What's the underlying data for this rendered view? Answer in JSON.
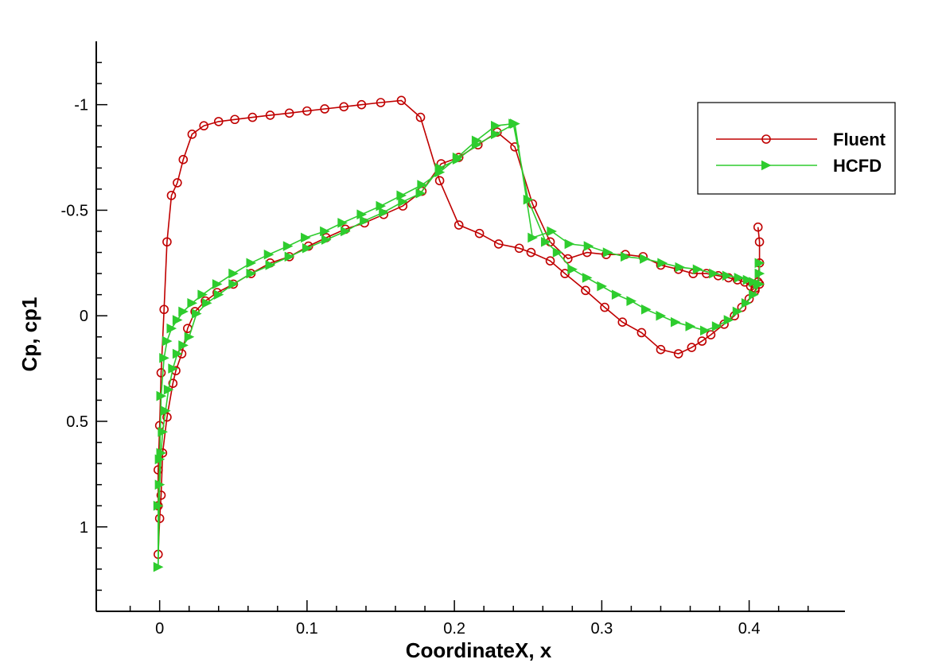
{
  "chart_data": {
    "type": "line",
    "xlabel": "CoordinateX, x",
    "ylabel": "Cp, cp1",
    "xlim": [
      -0.043,
      0.465
    ],
    "ylim": [
      1.4,
      -1.3
    ],
    "y_reversed": true,
    "x_ticks": [
      0,
      0.1,
      0.2,
      0.3,
      0.4
    ],
    "x_tick_labels": [
      "0",
      "0.1",
      "0.2",
      "0.3",
      "0.4"
    ],
    "y_ticks": [
      -1,
      -0.5,
      0,
      0.5,
      1
    ],
    "y_tick_labels": [
      "-1",
      "-0.5",
      "0",
      "0.5",
      "1"
    ],
    "legend_position": "top-right",
    "series": [
      {
        "name": "Fluent",
        "color": "#c00000",
        "marker": "circle",
        "x": [
          0.407,
          0.404,
          0.4,
          0.395,
          0.39,
          0.383,
          0.374,
          0.368,
          0.361,
          0.352,
          0.34,
          0.327,
          0.314,
          0.302,
          0.289,
          0.275,
          0.265,
          0.252,
          0.244,
          0.23,
          0.217,
          0.203,
          0.19,
          0.177,
          0.164,
          0.15,
          0.137,
          0.125,
          0.112,
          0.1,
          0.088,
          0.075,
          0.063,
          0.051,
          0.04,
          0.03,
          0.022,
          0.016,
          0.012,
          0.008,
          0.005,
          0.003,
          0.001,
          0.0,
          -0.001,
          -0.001,
          -0.001,
          0.0,
          0.001,
          0.002,
          0.005,
          0.009,
          0.011,
          0.015,
          0.019,
          0.024,
          0.031,
          0.039,
          0.05,
          0.062,
          0.075,
          0.088,
          0.101,
          0.113,
          0.126,
          0.139,
          0.152,
          0.165,
          0.178,
          0.191,
          0.203,
          0.216,
          0.229,
          0.241,
          0.253,
          0.265,
          0.277,
          0.29,
          0.303,
          0.316,
          0.328,
          0.34,
          0.352,
          0.362,
          0.371,
          0.379,
          0.386,
          0.392,
          0.397,
          0.401,
          0.404,
          0.406,
          0.407,
          0.407,
          0.406
        ],
        "y": [
          -0.15,
          -0.12,
          -0.08,
          -0.04,
          0.0,
          0.04,
          0.09,
          0.12,
          0.15,
          0.18,
          0.16,
          0.08,
          0.03,
          -0.04,
          -0.12,
          -0.2,
          -0.26,
          -0.3,
          -0.32,
          -0.34,
          -0.39,
          -0.43,
          -0.64,
          -0.94,
          -1.02,
          -1.01,
          -1.0,
          -0.99,
          -0.98,
          -0.97,
          -0.96,
          -0.95,
          -0.94,
          -0.93,
          -0.92,
          -0.9,
          -0.86,
          -0.74,
          -0.63,
          -0.57,
          -0.35,
          -0.03,
          0.27,
          0.52,
          0.73,
          0.9,
          1.13,
          0.96,
          0.85,
          0.65,
          0.48,
          0.32,
          0.26,
          0.18,
          0.06,
          -0.02,
          -0.07,
          -0.11,
          -0.15,
          -0.2,
          -0.25,
          -0.28,
          -0.33,
          -0.37,
          -0.41,
          -0.44,
          -0.48,
          -0.52,
          -0.59,
          -0.72,
          -0.75,
          -0.81,
          -0.87,
          -0.8,
          -0.53,
          -0.35,
          -0.27,
          -0.3,
          -0.29,
          -0.29,
          -0.28,
          -0.24,
          -0.22,
          -0.2,
          -0.2,
          -0.19,
          -0.18,
          -0.17,
          -0.16,
          -0.14,
          -0.13,
          -0.16,
          -0.25,
          -0.35,
          -0.42
        ]
      },
      {
        "name": "HCFD",
        "color": "#2ecc2e",
        "marker": "triangle-right",
        "x": [
          0.407,
          0.403,
          0.398,
          0.392,
          0.386,
          0.378,
          0.37,
          0.36,
          0.35,
          0.34,
          0.33,
          0.32,
          0.31,
          0.3,
          0.29,
          0.28,
          0.27,
          0.262,
          0.25,
          0.24,
          0.228,
          0.215,
          0.202,
          0.19,
          0.178,
          0.164,
          0.15,
          0.137,
          0.124,
          0.112,
          0.099,
          0.087,
          0.074,
          0.062,
          0.05,
          0.039,
          0.029,
          0.022,
          0.016,
          0.012,
          0.008,
          0.005,
          0.003,
          0.001,
          0.0,
          -0.001,
          -0.001,
          0.0,
          0.001,
          0.002,
          0.004,
          0.006,
          0.009,
          0.012,
          0.016,
          0.02,
          0.025,
          0.032,
          0.04,
          0.05,
          0.062,
          0.075,
          0.088,
          0.1,
          0.113,
          0.126,
          0.139,
          0.152,
          0.165,
          0.177,
          0.19,
          0.202,
          0.215,
          0.228,
          0.241,
          0.253,
          0.266,
          0.278,
          0.291,
          0.304,
          0.316,
          0.329,
          0.341,
          0.353,
          0.365,
          0.376,
          0.385,
          0.393,
          0.399,
          0.403,
          0.406,
          0.407,
          0.407
        ],
        "y": [
          -0.15,
          -0.1,
          -0.06,
          -0.02,
          0.02,
          0.05,
          0.07,
          0.05,
          0.03,
          0.0,
          -0.03,
          -0.07,
          -0.1,
          -0.14,
          -0.18,
          -0.22,
          -0.3,
          -0.35,
          -0.55,
          -0.91,
          -0.9,
          -0.83,
          -0.75,
          -0.68,
          -0.62,
          -0.57,
          -0.52,
          -0.48,
          -0.44,
          -0.4,
          -0.37,
          -0.33,
          -0.29,
          -0.25,
          -0.2,
          -0.15,
          -0.1,
          -0.06,
          -0.02,
          0.02,
          0.06,
          0.12,
          0.2,
          0.38,
          0.68,
          0.9,
          1.19,
          0.8,
          0.65,
          0.55,
          0.45,
          0.35,
          0.25,
          0.18,
          0.14,
          0.1,
          -0.01,
          -0.06,
          -0.1,
          -0.15,
          -0.2,
          -0.24,
          -0.28,
          -0.32,
          -0.36,
          -0.4,
          -0.45,
          -0.49,
          -0.54,
          -0.58,
          -0.7,
          -0.74,
          -0.81,
          -0.86,
          -0.91,
          -0.37,
          -0.4,
          -0.34,
          -0.33,
          -0.3,
          -0.28,
          -0.27,
          -0.25,
          -0.23,
          -0.22,
          -0.2,
          -0.19,
          -0.18,
          -0.17,
          -0.16,
          -0.15,
          -0.2,
          -0.25
        ]
      }
    ]
  }
}
